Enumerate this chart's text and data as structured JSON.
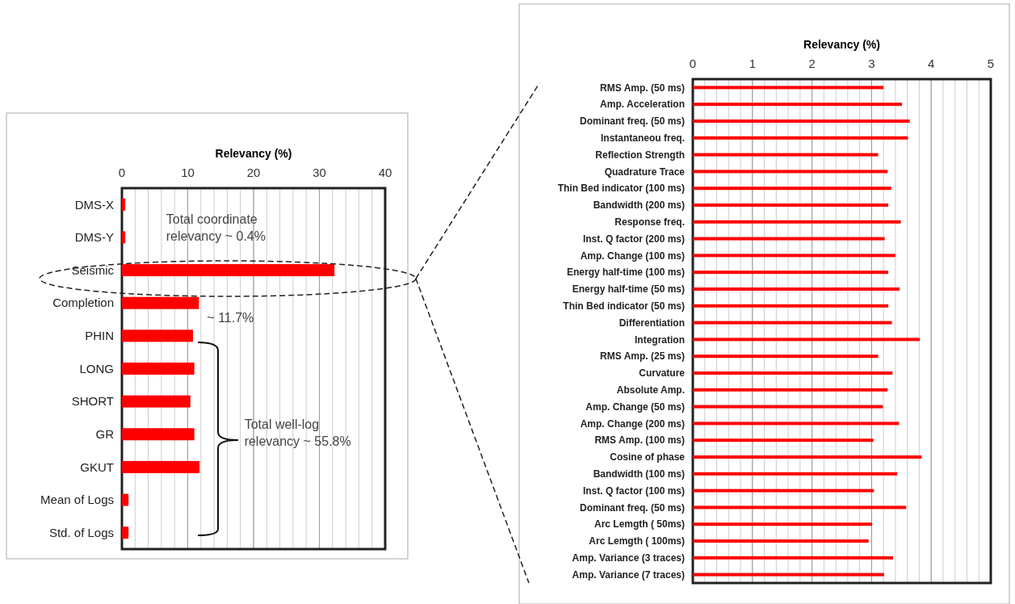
{
  "chart_data": [
    {
      "type": "bar",
      "orientation": "horizontal",
      "xlabel": "Relevancy (%)",
      "categories": [
        "DMS-X",
        "DMS-Y",
        "Seismic",
        "Completion",
        "PHIN",
        "LONG",
        "SHORT",
        "GR",
        "GKUT",
        "Mean of Logs",
        "Std. of Logs"
      ],
      "values": [
        0.5,
        0.5,
        32.3,
        11.7,
        10.8,
        11.0,
        10.4,
        11.0,
        11.8,
        1.0,
        1.0
      ],
      "color": "#ff0000",
      "xlim": [
        0,
        40
      ],
      "xticks": [
        0,
        10,
        20,
        30,
        40
      ],
      "grid": "x",
      "annotations": [
        "Total coordinate relevancy ~ 0.4%",
        {
          "text": "~ 11.7%",
          "x": 11.7,
          "y": "Completion"
        },
        "Total well-log relevancy ~ 55.8%"
      ]
    },
    {
      "type": "bar",
      "orientation": "horizontal",
      "xlabel": "Relevancy (%)",
      "categories": [
        "RMS Amp. (50 ms)",
        "Amp. Acceleration",
        "Dominant freq. (50 ms)",
        "Instantaneou freq.",
        "Reflection Strength",
        "Quadrature Trace",
        "Thin Bed indicator (100 ms)",
        "Bandwidth (200 ms)",
        "Response freq.",
        "Inst. Q factor (200 ms)",
        "Amp. Change (100 ms)",
        "Energy half-time (100 ms)",
        "Energy half-time (50 ms)",
        "Thin Bed indicator (50 ms)",
        "Differentiation",
        "Integration",
        "RMS Amp. (25 ms)",
        "Curvature",
        "Absolute Amp.",
        "Amp. Change (50 ms)",
        "Amp. Change (200 ms)",
        "RMS Amp. (100 ms)",
        "Cosine of phase",
        "Bandwidth (100 ms)",
        "Inst. Q factor (100 ms)",
        "Dominant freq. (50 ms)",
        "Arc Lemgth ( 50ms)",
        "Arc Lemgth ( 100ms)",
        "Amp. Variance (3 traces)",
        "Amp. Variance (7 traces)"
      ],
      "values": [
        3.2,
        3.51,
        3.64,
        3.61,
        3.11,
        3.27,
        3.33,
        3.28,
        3.49,
        3.22,
        3.4,
        3.28,
        3.47,
        3.28,
        3.34,
        3.81,
        3.11,
        3.35,
        3.27,
        3.19,
        3.46,
        3.03,
        3.84,
        3.43,
        3.04,
        3.58,
        3.01,
        2.95,
        3.36,
        3.21
      ],
      "color": "#ff0000",
      "xlim": [
        0,
        5
      ],
      "xticks": [
        0,
        1,
        2,
        3,
        4,
        5
      ],
      "grid": "x"
    }
  ]
}
